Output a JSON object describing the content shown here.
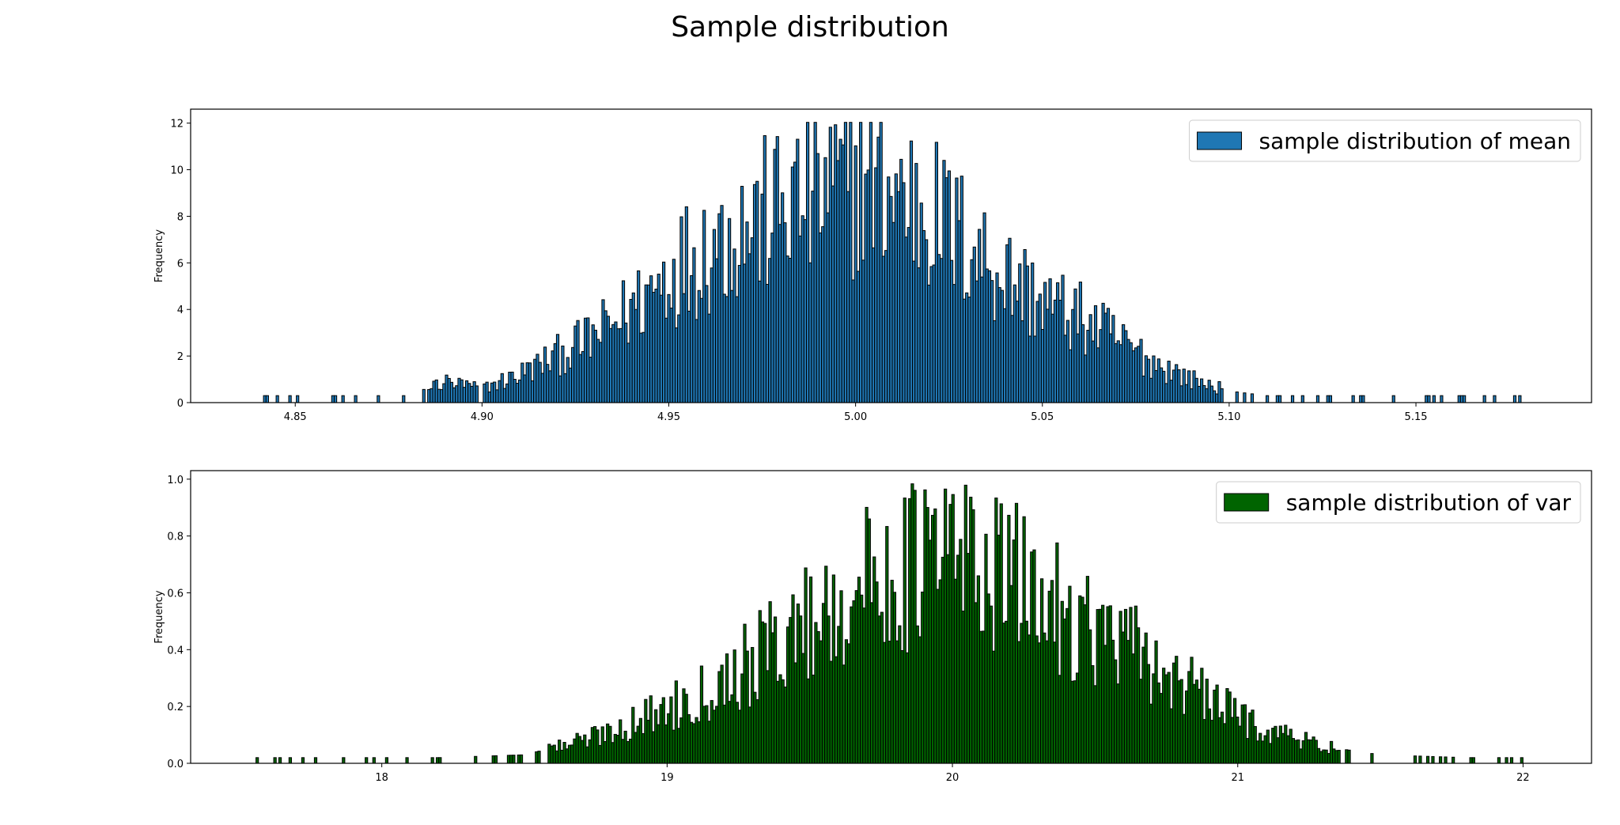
{
  "figure": {
    "title": "Sample distribution"
  },
  "chart_data": [
    {
      "type": "bar",
      "name": "mean-histogram",
      "legend": "sample distribution of mean",
      "legend_position": "top-right",
      "color": "#1f77b4",
      "edgecolor": "#000000",
      "xlabel": "",
      "ylabel": "Frequency",
      "xlim": [
        4.822,
        5.197
      ],
      "ylim": [
        0,
        12.6
      ],
      "xticks": [
        4.85,
        4.9,
        4.95,
        5.0,
        5.05,
        5.1,
        5.15
      ],
      "xtick_labels": [
        "4.85",
        "4.90",
        "4.95",
        "5.00",
        "5.05",
        "5.10",
        "5.15"
      ],
      "yticks": [
        0,
        2,
        4,
        6,
        8,
        10,
        12
      ],
      "ytick_labels": [
        "0",
        "2",
        "4",
        "6",
        "8",
        "10",
        "12"
      ],
      "bins": {
        "start": 4.8415,
        "end": 5.1795,
        "count": 500
      },
      "profile_points": [
        [
          4.842,
          0.3
        ],
        [
          4.86,
          0.3
        ],
        [
          4.88,
          0.3
        ],
        [
          4.89,
          0.9
        ],
        [
          4.9,
          0.6
        ],
        [
          4.91,
          1.2
        ],
        [
          4.92,
          2.0
        ],
        [
          4.93,
          2.8
        ],
        [
          4.94,
          4.0
        ],
        [
          4.95,
          5.6
        ],
        [
          4.96,
          6.7
        ],
        [
          4.97,
          7.5
        ],
        [
          4.98,
          8.3
        ],
        [
          4.99,
          8.9
        ],
        [
          5.0,
          9.5
        ],
        [
          5.01,
          9.1
        ],
        [
          5.02,
          8.2
        ],
        [
          5.03,
          6.8
        ],
        [
          5.04,
          5.5
        ],
        [
          5.05,
          4.3
        ],
        [
          5.06,
          3.6
        ],
        [
          5.07,
          2.7
        ],
        [
          5.08,
          1.7
        ],
        [
          5.09,
          1.0
        ],
        [
          5.1,
          0.5
        ],
        [
          5.11,
          0.3
        ],
        [
          5.12,
          0.3
        ],
        [
          5.13,
          0.3
        ],
        [
          5.14,
          0.3
        ],
        [
          5.15,
          0.3
        ],
        [
          5.179,
          0.3
        ]
      ]
    },
    {
      "type": "bar",
      "name": "var-histogram",
      "legend": "sample distribution of var",
      "legend_position": "top-right",
      "color": "#006400",
      "edgecolor": "#000000",
      "xlabel": "",
      "ylabel": "Frequency",
      "xlim": [
        17.33,
        22.24
      ],
      "ylim": [
        0,
        1.03
      ],
      "xticks": [
        18,
        19,
        20,
        21,
        22
      ],
      "xtick_labels": [
        "18",
        "19",
        "20",
        "21",
        "22"
      ],
      "yticks": [
        0.0,
        0.2,
        0.4,
        0.6,
        0.8,
        1.0
      ],
      "ytick_labels": [
        "0.0",
        "0.2",
        "0.4",
        "0.6",
        "0.8",
        "1.0"
      ],
      "bins": {
        "start": 17.55,
        "end": 22.0,
        "count": 500
      },
      "profile_points": [
        [
          17.55,
          0.02
        ],
        [
          18.2,
          0.02
        ],
        [
          18.5,
          0.03
        ],
        [
          18.7,
          0.08
        ],
        [
          18.9,
          0.15
        ],
        [
          19.1,
          0.24
        ],
        [
          19.3,
          0.36
        ],
        [
          19.5,
          0.5
        ],
        [
          19.7,
          0.63
        ],
        [
          19.9,
          0.71
        ],
        [
          20.0,
          0.74
        ],
        [
          20.1,
          0.7
        ],
        [
          20.3,
          0.59
        ],
        [
          20.5,
          0.47
        ],
        [
          20.7,
          0.35
        ],
        [
          20.9,
          0.22
        ],
        [
          21.1,
          0.12
        ],
        [
          21.3,
          0.06
        ],
        [
          21.5,
          0.03
        ],
        [
          21.8,
          0.02
        ],
        [
          22.0,
          0.02
        ]
      ]
    }
  ]
}
